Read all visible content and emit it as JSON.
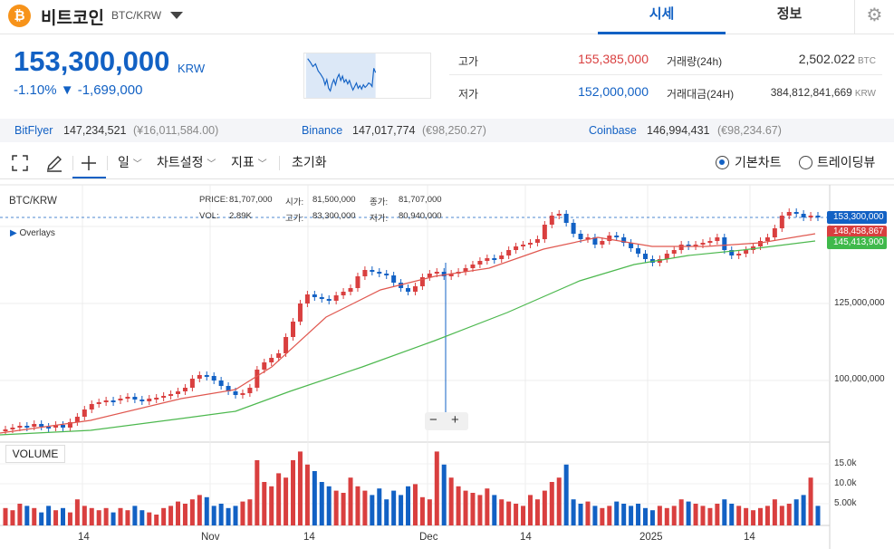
{
  "header": {
    "coin_symbol": "₿",
    "coin_name": "비트코인",
    "pair": "BTC/KRW",
    "tabs": [
      "시세",
      "정보"
    ]
  },
  "quote": {
    "price": "153,300,000",
    "unit": "KRW",
    "change": "-1.10% ▼ -1,699,000"
  },
  "stats": {
    "high_label": "고가",
    "high": "155,385,000",
    "low_label": "저가",
    "low": "152,000,000",
    "vol_label": "거래량(24h)",
    "vol": "2,502.022",
    "vol_unit": "BTC",
    "amt_label": "거래대금(24H)",
    "amt": "384,812,841,669",
    "amt_unit": "KRW"
  },
  "exchanges": [
    {
      "name": "BitFlyer",
      "price": "147,234,521",
      "conv": "(¥16,011,584.00)"
    },
    {
      "name": "Binance",
      "price": "147,017,774",
      "conv": "(€98,250.27)"
    },
    {
      "name": "Coinbase",
      "price": "146,994,431",
      "conv": "(€98,234.67)"
    }
  ],
  "toolbar": {
    "interval": "일",
    "settings": "차트설정",
    "indicator": "지표",
    "reset": "초기화",
    "radio1": "기본차트",
    "radio2": "트레이딩뷰"
  },
  "chart": {
    "symbol": "BTC/KRW",
    "overlays": "Overlays",
    "price_label": "PRICE:",
    "price_val": "81,707,000",
    "open_label": "시가:",
    "open_val": "81,500,000",
    "close_label": "종가:",
    "close_val": "81,707,000",
    "vol_label": "VOL:",
    "vol_val": "2.89K",
    "high_label": "고가:",
    "high_val": "83,300,000",
    "low_label": "저가:",
    "low_val": "80,940,000",
    "volume_btn": "VOLUME",
    "tags": [
      {
        "text": "153,300,000",
        "color": "#1261c4"
      },
      {
        "text": "148,458,867",
        "color": "#d93f3f"
      },
      {
        "text": "145,413,900",
        "color": "#3fb94b"
      }
    ],
    "y_ticks": [
      "125,000,000",
      "100,000,000"
    ],
    "vol_ticks": [
      "15.0k",
      "10.0k",
      "5.00k"
    ],
    "x_ticks": [
      "14",
      "Nov",
      "14",
      "Dec",
      "14",
      "2025",
      "14"
    ],
    "zoom_minus": "−",
    "zoom_plus": "+"
  }
}
